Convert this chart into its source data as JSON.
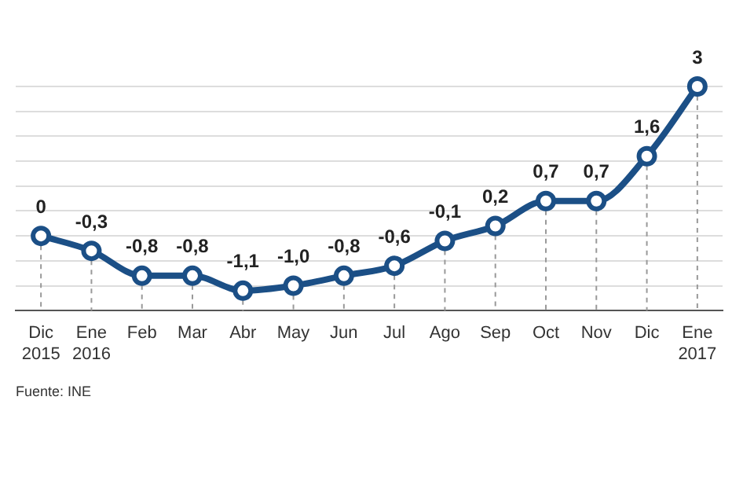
{
  "chart_data": {
    "type": "line",
    "categories": [
      "Dic 2015",
      "Ene 2016",
      "Feb",
      "Mar",
      "Abr",
      "May",
      "Jun",
      "Jul",
      "Ago",
      "Sep",
      "Oct",
      "Nov",
      "Dic",
      "Ene 2017"
    ],
    "series": [
      {
        "color": "#1b4f86",
        "values": [
          0,
          -0.3,
          -0.8,
          -0.8,
          -1.1,
          -1.0,
          -0.8,
          -0.6,
          -0.1,
          0.2,
          0.7,
          0.7,
          1.6,
          3
        ],
        "value_labels": [
          "0",
          "-0,3",
          "-0,8",
          "-0,8",
          "-1,1",
          "-1,0",
          "-0,8",
          "-0,6",
          "-0,1",
          "0,2",
          "0,7",
          "0,7",
          "1,6",
          "3"
        ]
      }
    ],
    "marker": "circle",
    "grid": true,
    "tick_labels": "x",
    "legend": false,
    "annotations": [
      "Fuente: INE"
    ]
  }
}
